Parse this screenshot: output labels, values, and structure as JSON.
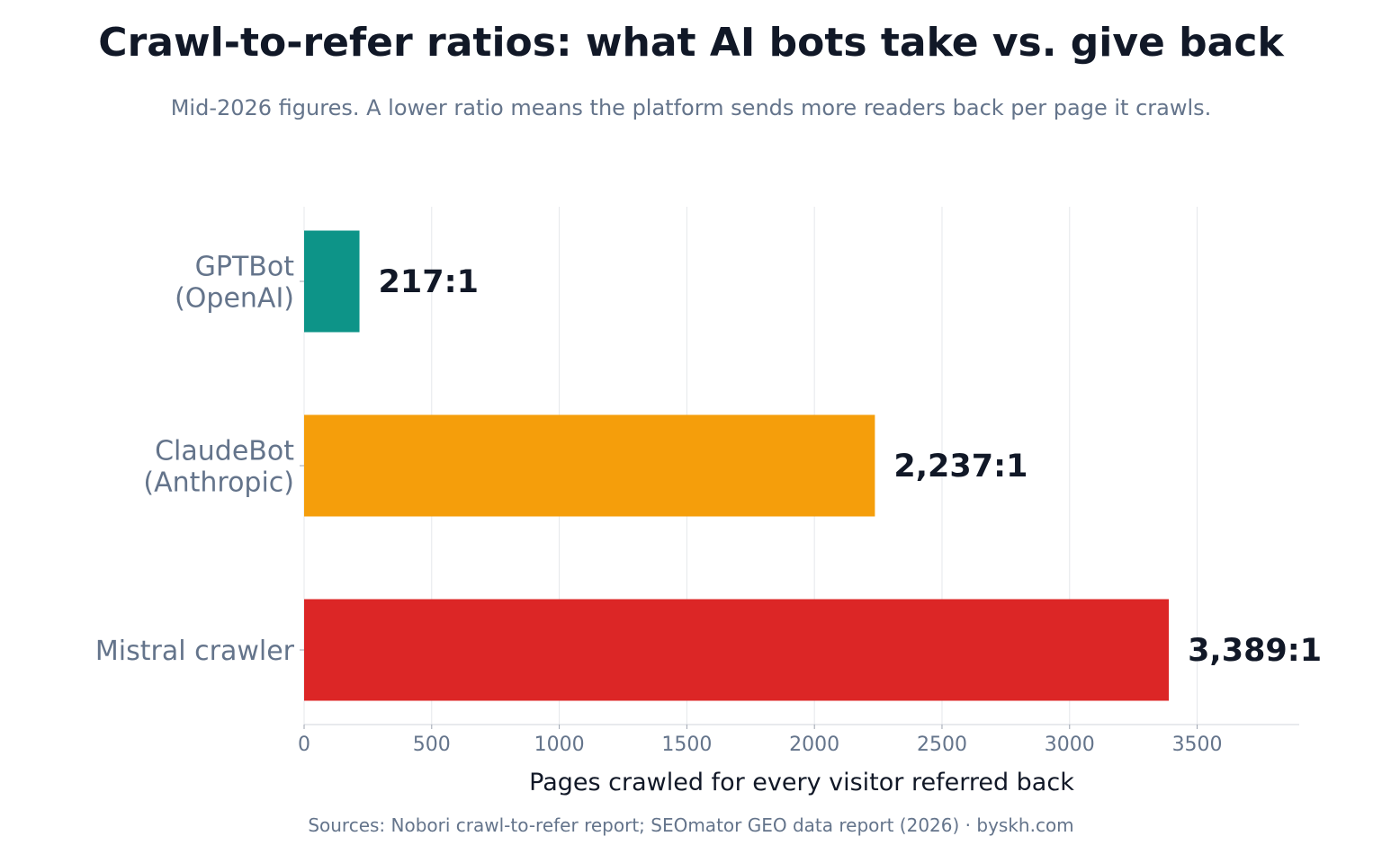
{
  "title": "Crawl-to-refer ratios: what AI bots take vs. give back",
  "subtitle": "Mid-2026 figures. A lower ratio means the platform sends more readers back per page it crawls.",
  "source": "Sources: Nobori crawl-to-refer report; SEOmator GEO data report (2026)  ·  byskh.com",
  "chart_data": {
    "type": "bar",
    "orientation": "horizontal",
    "categories": [
      [
        "GPTBot",
        "(OpenAI)"
      ],
      [
        "ClaudeBot",
        "(Anthropic)"
      ],
      [
        "Mistral crawler"
      ]
    ],
    "values": [
      217,
      2237,
      3389
    ],
    "data_labels": [
      "217:1",
      "2,237:1",
      "3,389:1"
    ],
    "colors": [
      "#0d9488",
      "#f59e0b",
      "#dc2626"
    ],
    "xlabel": "Pages crawled for every visitor referred back",
    "ylabel": "",
    "xlim": [
      0,
      3900
    ],
    "xticks": [
      0,
      500,
      1000,
      1500,
      2000,
      2500,
      3000,
      3500
    ],
    "grid": "vertical"
  }
}
